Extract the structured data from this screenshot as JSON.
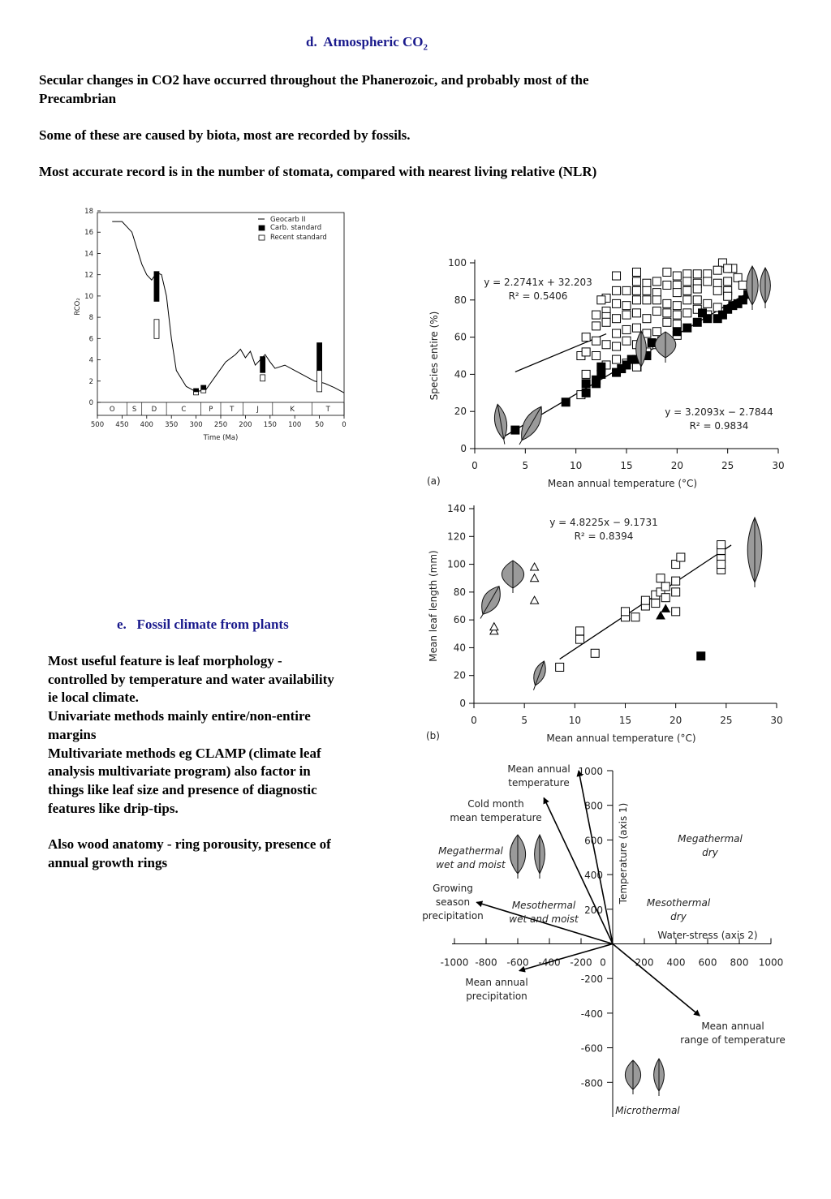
{
  "document": {
    "section_d": {
      "label": "d.",
      "title": "Atmospheric CO",
      "title_sub": "2",
      "paragraphs": [
        [
          "Secular changes in CO2 have occurred throughout the Phanerozoic, and probably most of the",
          "Precambrian"
        ],
        [
          "Some of these are caused by biota, most are recorded by fossils."
        ],
        [
          "Most accurate record is in the number of stomata, compared with nearest living relative (NLR)"
        ]
      ]
    },
    "section_e": {
      "label": "e.",
      "title": "Fossil climate from plants",
      "paragraphs": [
        [
          "Most useful feature is leaf morphology -",
          "controlled by temperature and water availability",
          "ie local climate.",
          "Univariate methods mainly entire/non-entire",
          "margins",
          "Multivariate methods eg CLAMP (climate leaf",
          "analysis multivariate program) also factor in",
          "things like leaf size and presence of diagnostic",
          "features like drip-tips."
        ],
        [
          "Also wood anatomy - ring porousity, presence of",
          "annual growth rings"
        ]
      ]
    }
  },
  "chart_data": [
    {
      "type": "line",
      "y_label": "RCO₂",
      "x_label": "Time (Ma)",
      "xlim": [
        500,
        0
      ],
      "ylim": [
        0,
        18
      ],
      "xticks": [
        500,
        450,
        400,
        350,
        300,
        250,
        200,
        150,
        100,
        50,
        0
      ],
      "yticks": [
        0,
        2,
        4,
        6,
        8,
        10,
        12,
        14,
        16,
        18
      ],
      "series": [
        {
          "name": "Geocarb II",
          "color": "#000000",
          "x": [
            470,
            450,
            430,
            410,
            400,
            390,
            380,
            370,
            360,
            350,
            340,
            320,
            300,
            280,
            260,
            240,
            220,
            210,
            200,
            190,
            180,
            170,
            160,
            150,
            140,
            120,
            100,
            80,
            60,
            40,
            20,
            0
          ],
          "values": [
            17,
            17,
            16,
            13,
            12,
            11.5,
            12.2,
            12,
            10,
            6,
            3,
            1.5,
            1,
            1.2,
            2.5,
            3.8,
            4.5,
            5,
            4.2,
            4.8,
            3.5,
            4,
            4.5,
            3.8,
            3.2,
            3.5,
            3,
            2.5,
            2,
            1.8,
            1.4,
            0.9
          ]
        }
      ],
      "ranges": [
        {
          "name": "Carb. standard",
          "style": "filled",
          "x": [
            380,
            300,
            285,
            165,
            50
          ],
          "values": [
            [
              9.5,
              12.3
            ],
            [
              1,
              1.3
            ],
            [
              1.2,
              1.6
            ],
            [
              2.8,
              4.3
            ],
            [
              3,
              5.6
            ]
          ]
        },
        {
          "name": "Recent standard",
          "style": "open",
          "x": [
            380,
            300,
            285,
            165,
            50
          ],
          "values": [
            [
              6,
              7.8
            ],
            [
              0.7,
              1
            ],
            [
              0.9,
              1.2
            ],
            [
              2,
              2.6
            ],
            [
              1,
              3
            ]
          ]
        }
      ],
      "periods": [
        "O",
        "S",
        "D",
        "C",
        "P",
        "T",
        "J",
        "K",
        "T"
      ],
      "period_bounds": [
        500,
        440,
        410,
        360,
        290,
        250,
        205,
        145,
        65,
        0
      ]
    },
    {
      "type": "scatter",
      "panel": "(a)",
      "x_label": "Mean annual temperature (°C)",
      "y_label": "Species entire (%)",
      "xlim": [
        0,
        30
      ],
      "ylim": [
        0,
        100
      ],
      "xticks": [
        0,
        5,
        10,
        15,
        20,
        25,
        30
      ],
      "yticks": [
        0,
        20,
        40,
        60,
        80,
        100
      ],
      "series": [
        {
          "marker": "square",
          "color": "#ffffff",
          "x": [
            24.5,
            25.5,
            25,
            24,
            23,
            22,
            21,
            20,
            19,
            16,
            14,
            16,
            17,
            18,
            19,
            20,
            21,
            22,
            23,
            24,
            25,
            26,
            26.5,
            25,
            24,
            22,
            21,
            20,
            18,
            17,
            16,
            15,
            14,
            13,
            12.5,
            14,
            15,
            16,
            17,
            18,
            19,
            20,
            21,
            22,
            23,
            24,
            25,
            13,
            12,
            13,
            14,
            15,
            16,
            17,
            18,
            19,
            20,
            21,
            22,
            23,
            12,
            13,
            14,
            15,
            16,
            17,
            18,
            19,
            20,
            11,
            12,
            13,
            14,
            15,
            16,
            17,
            18,
            19,
            20,
            10.5,
            11,
            12,
            14,
            15,
            16,
            13,
            11,
            10.5,
            16.5
          ],
          "values": [
            100,
            97,
            97,
            96,
            94,
            94,
            94,
            93,
            95,
            95,
            93,
            90,
            89,
            90,
            88,
            88,
            90,
            89,
            90,
            89,
            90,
            92,
            88,
            85,
            85,
            86,
            85,
            84,
            84,
            85,
            85,
            85,
            85,
            81,
            80,
            78,
            77,
            80,
            80,
            80,
            78,
            77,
            80,
            80,
            78,
            76,
            82,
            74,
            72,
            71,
            70,
            72,
            73,
            70,
            74,
            73,
            72,
            73,
            75,
            72,
            66,
            68,
            62,
            64,
            65,
            62,
            63,
            68,
            67,
            60,
            58,
            56,
            55,
            58,
            56,
            52,
            56,
            58,
            61,
            50,
            52,
            50,
            48,
            46,
            44,
            45,
            40,
            29,
            53
          ]
        },
        {
          "marker": "square",
          "color": "#000000",
          "x": [
            4,
            9,
            11,
            11,
            12,
            12,
            12.5,
            12.5,
            14,
            14.5,
            15,
            15.5,
            16,
            17,
            17.5,
            18.5,
            20,
            21,
            22,
            22.5,
            23,
            24,
            24.5,
            25,
            25.5,
            26,
            26.5,
            27
          ],
          "values": [
            10,
            25,
            30,
            35,
            35,
            37,
            40,
            44,
            41,
            43,
            45,
            48,
            48,
            50,
            57,
            58,
            63,
            65,
            68,
            73,
            70,
            70,
            72,
            75,
            77,
            78,
            80,
            83
          ]
        }
      ],
      "fits": [
        {
          "slope": 2.2741,
          "intercept": 32.203,
          "x": [
            4,
            13
          ],
          "equation": "y = 2.2741x + 32.203",
          "r2": "R² = 0.5406"
        },
        {
          "slope": 3.2093,
          "intercept": -2.7844,
          "x": [
            3,
            28
          ],
          "equation": "y = 3.2093x −  2.7844",
          "r2": "R² = 0.9834"
        }
      ]
    },
    {
      "type": "scatter",
      "panel": "(b)",
      "x_label": "Mean annual temperature (°C)",
      "y_label": "Mean leaf length (mm)",
      "xlim": [
        0,
        30
      ],
      "ylim": [
        0,
        140
      ],
      "xticks": [
        0,
        5,
        10,
        15,
        20,
        25,
        30
      ],
      "yticks": [
        0,
        20,
        40,
        60,
        80,
        100,
        120,
        140
      ],
      "series": [
        {
          "marker": "square",
          "color": "#ffffff",
          "x": [
            8.5,
            10.5,
            10.5,
            12,
            15,
            15,
            16,
            17,
            17,
            18,
            18,
            18.5,
            18.5,
            19,
            19,
            20,
            20,
            20,
            20,
            20.5,
            24.5,
            24.5,
            24.5,
            24.5,
            24.5
          ],
          "values": [
            26,
            46,
            52,
            36,
            62,
            66,
            62,
            70,
            74,
            72,
            78,
            80,
            90,
            84,
            76,
            66,
            80,
            88,
            100,
            105,
            96,
            104,
            110,
            114,
            100
          ]
        },
        {
          "marker": "triangle",
          "color": "#ffffff",
          "x": [
            2,
            2,
            6,
            6,
            6
          ],
          "values": [
            52,
            55,
            98,
            90,
            74
          ]
        },
        {
          "marker": "triangle",
          "color": "#000000",
          "x": [
            18.5,
            19
          ],
          "values": [
            63,
            68
          ]
        },
        {
          "marker": "square",
          "color": "#000000",
          "x": [
            22.5
          ],
          "values": [
            34
          ]
        }
      ],
      "fits": [
        {
          "slope": 4.8225,
          "intercept": -9.1731,
          "x": [
            8.5,
            25.5
          ],
          "equation": "y = 4.8225x − 9.1731",
          "r2": "R² = 0.8394"
        }
      ]
    },
    {
      "type": "vector",
      "x_label": "Water-stress (axis 2)",
      "y_label": "Temperature (axis 1)",
      "xlim": [
        -1000,
        1000
      ],
      "ylim": [
        -1000,
        1000
      ],
      "xticks": [
        -1000,
        -800,
        -600,
        -400,
        -200,
        0,
        200,
        400,
        600,
        800,
        1000
      ],
      "yticks": [
        1000,
        800,
        600,
        400,
        200,
        -200,
        -400,
        -600,
        -800
      ],
      "vectors": [
        {
          "label_lines": [
            "Mean annual",
            "temperature"
          ],
          "x": -215,
          "y": 1000
        },
        {
          "label_lines": [
            "Cold month",
            "mean temperature"
          ],
          "x": -435,
          "y": 843
        },
        {
          "label_lines": [
            "Growing",
            "season",
            "precipitation"
          ],
          "x": -860,
          "y": 240
        },
        {
          "label_lines": [
            "Mean annual",
            "precipitation"
          ],
          "x": -590,
          "y": -155
        },
        {
          "label_lines": [
            "Mean annual",
            "range of temperature"
          ],
          "x": 550,
          "y": -415
        }
      ],
      "regions": [
        {
          "label_lines": [
            "Megathermal",
            "wet and moist"
          ]
        },
        {
          "label_lines": [
            "Mesothermal",
            "wet and moist"
          ]
        },
        {
          "label_lines": [
            "Megathermal",
            "dry"
          ]
        },
        {
          "label_lines": [
            "Mesothermal",
            "dry"
          ]
        },
        {
          "label_lines": [
            "Microthermal"
          ]
        }
      ]
    }
  ]
}
